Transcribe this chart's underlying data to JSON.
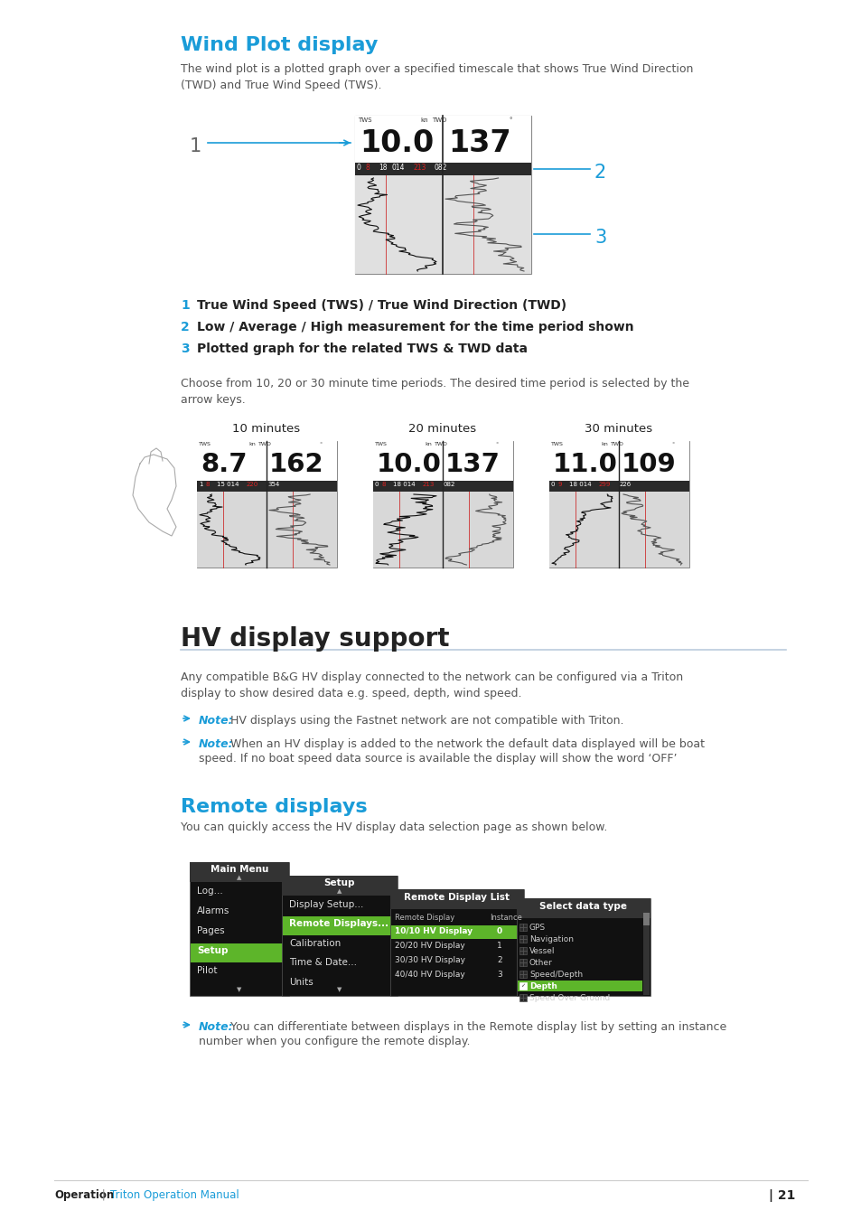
{
  "bg_color": "#ffffff",
  "section1_title": "Wind Plot display",
  "section1_body": "The wind plot is a plotted graph over a specified timescale that shows True Wind Direction\n(TWD) and True Wind Speed (TWS).",
  "label1_text": "True Wind Speed (TWS) / True Wind Direction (TWD)",
  "label2_text": "Low / Average / High measurement for the time period shown",
  "label3_text": "Plotted graph for the related TWS & TWD data",
  "choose_text": "Choose from 10, 20 or 30 minute time periods. The desired time period is selected by the\narrow keys.",
  "time_labels": [
    "10 minutes",
    "20 minutes",
    "30 minutes"
  ],
  "display_vals_tws": [
    "8.7",
    "10.0",
    "11.0"
  ],
  "display_vals_twd": [
    "162",
    "137",
    "109"
  ],
  "bar_vals": [
    [
      "1",
      "8",
      "15 014",
      "220",
      "354"
    ],
    [
      "0",
      "8",
      "18 014",
      "213",
      "082"
    ],
    [
      "0",
      "9",
      "18 014",
      "299",
      "226"
    ]
  ],
  "section2_title": "HV display support",
  "section2_body": "Any compatible B&G HV display connected to the network can be configured via a Triton\ndisplay to show desired data e.g. speed, depth, wind speed.",
  "note1_bold": "Note:",
  "note1_text": " HV displays using the Fastnet network are not compatible with Triton.",
  "note2_bold": "Note:",
  "note2_line1": " When an HV display is added to the network the default data displayed will be boat",
  "note2_line2": "speed. If no boat speed data source is available the display will show the word ‘OFF’",
  "section3_title": "Remote displays",
  "section3_body": "You can quickly access the HV display data selection page as shown below.",
  "note3_bold": "Note:",
  "note3_line1": " You can differentiate between displays in the Remote display list by setting an instance",
  "note3_line2": "number when you configure the remote display.",
  "footer_bold": "Operation",
  "footer_sep": " | ",
  "footer_link": "Triton Operation Manual",
  "footer_num": "| 21",
  "blue_color": "#1a9cd8",
  "text_color": "#555555",
  "bold_color": "#222222",
  "menu_bg": "#111111",
  "menu_hl": "#5db52a",
  "menu_hdr": "#222222",
  "menu_white": "#ffffff",
  "menu_gray": "#aaaaaa"
}
